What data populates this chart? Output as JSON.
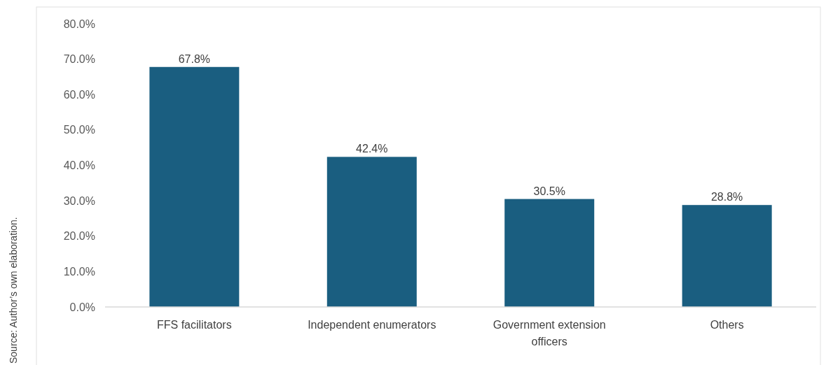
{
  "chart_data": {
    "type": "bar",
    "categories": [
      "FFS facilitators",
      "Independent enumerators",
      "Government extension officers",
      "Others"
    ],
    "values": [
      67.8,
      42.4,
      30.5,
      28.8
    ],
    "color": "#1a5e80",
    "value_labels": [
      "67.8%",
      "42.4%",
      "30.5%",
      "28.8%"
    ],
    "ylim": [
      0,
      80
    ],
    "yticks": [
      {
        "value": 0,
        "label": "0.0%"
      },
      {
        "value": 10,
        "label": "10.0%"
      },
      {
        "value": 20,
        "label": "20.0%"
      },
      {
        "value": 30,
        "label": "30.0%"
      },
      {
        "value": 40,
        "label": "40.0%"
      },
      {
        "value": 50,
        "label": "50.0%"
      },
      {
        "value": 60,
        "label": "60.0%"
      },
      {
        "value": 70,
        "label": "70.0%"
      },
      {
        "value": 80,
        "label": "80.0%"
      }
    ],
    "annotations": [
      "Source: Author’s own elaboration."
    ]
  }
}
